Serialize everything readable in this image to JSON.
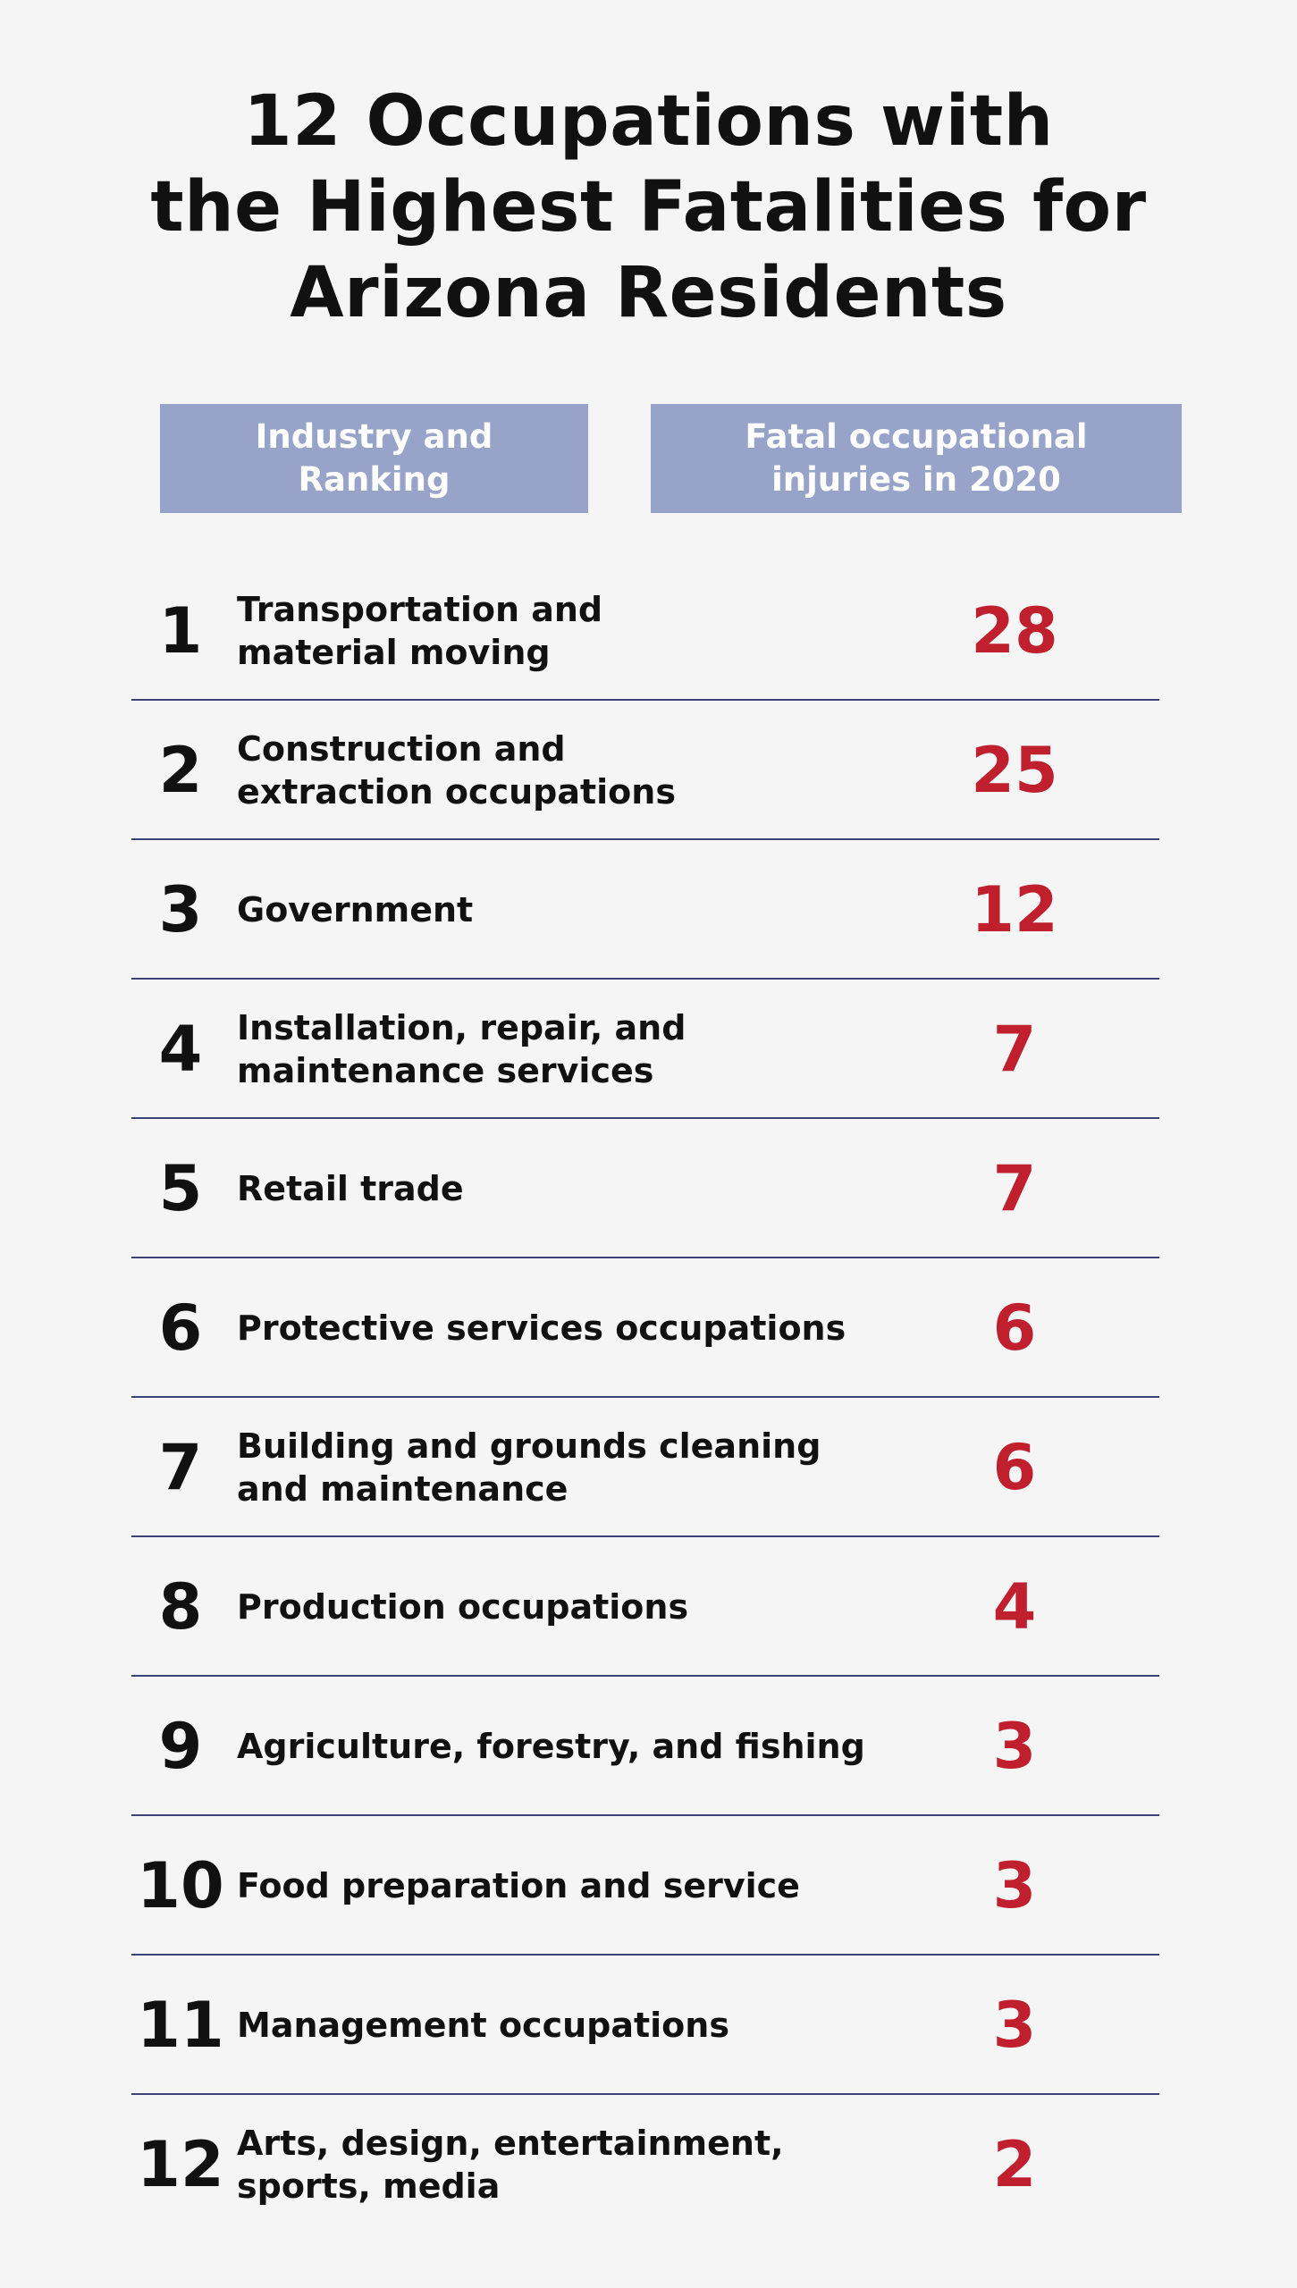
{
  "title": {
    "line1": "12 Occupations with",
    "line2": "the Highest Fatalities for",
    "line3": "Arizona Residents"
  },
  "headers": {
    "left": {
      "line1": "Industry and",
      "line2": "Ranking"
    },
    "right": {
      "line1": "Fatal occupational",
      "line2": "injuries in 2020"
    }
  },
  "colors": {
    "header_bg": "#97a3c9",
    "value_red": "#c01f2e",
    "divider": "#3a4173",
    "background": "#f5f5f6"
  },
  "rows": [
    {
      "rank": "1",
      "line1": "Transportation and",
      "line2": "material moving",
      "value": "28"
    },
    {
      "rank": "2",
      "line1": "Construction and",
      "line2": "extraction occupations",
      "value": "25"
    },
    {
      "rank": "3",
      "line1": "Government",
      "line2": "",
      "value": "12"
    },
    {
      "rank": "4",
      "line1": "Installation, repair, and",
      "line2": "maintenance services",
      "value": "7"
    },
    {
      "rank": "5",
      "line1": "Retail trade",
      "line2": "",
      "value": "7"
    },
    {
      "rank": "6",
      "line1": "Protective services occupations",
      "line2": "",
      "value": "6"
    },
    {
      "rank": "7",
      "line1": "Building and grounds cleaning",
      "line2": "and maintenance",
      "value": "6"
    },
    {
      "rank": "8",
      "line1": "Production occupations",
      "line2": "",
      "value": "4"
    },
    {
      "rank": "9",
      "line1": "Agriculture, forestry, and fishing",
      "line2": "",
      "value": "3"
    },
    {
      "rank": "10",
      "line1": "Food preparation and service",
      "line2": "",
      "value": "3"
    },
    {
      "rank": "11",
      "line1": "Management occupations",
      "line2": "",
      "value": "3"
    },
    {
      "rank": "12",
      "line1": "Arts, design, entertainment,",
      "line2": "sports, media",
      "value": "2"
    }
  ]
}
